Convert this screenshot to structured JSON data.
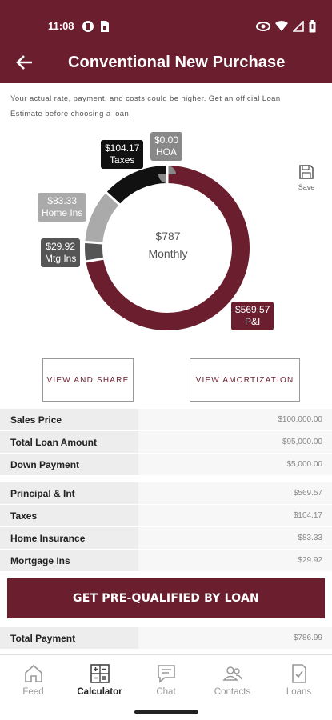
{
  "status_bar": {
    "time": "11:08"
  },
  "header": {
    "title": "Conventional New Purchase"
  },
  "disclaimer": "Your actual rate, payment, and costs could be higher. Get an official Loan Estimate before choosing a loan.",
  "chart_data": {
    "type": "pie",
    "donut": true,
    "center_value": "$787",
    "center_label": "Monthly",
    "slices": [
      {
        "name": "P&I",
        "value": 569.57,
        "label_value": "$569.57",
        "color": "#6b1f2e"
      },
      {
        "name": "Mtg Ins",
        "value": 29.92,
        "label_value": "$29.92",
        "color": "#555555"
      },
      {
        "name": "Home Ins",
        "value": 83.33,
        "label_value": "$83.33",
        "color": "#aaaaaa"
      },
      {
        "name": "Taxes",
        "value": 104.17,
        "label_value": "$104.17",
        "color": "#111111"
      },
      {
        "name": "HOA",
        "value": 0.0,
        "label_value": "$0.00",
        "color": "#888888"
      }
    ]
  },
  "actions": {
    "save_label": "Save",
    "view_share": "VIEW AND SHARE",
    "view_amortization": "VIEW AMORTIZATION"
  },
  "loan_summary": [
    {
      "label": "Sales Price",
      "value": "$100,000.00"
    },
    {
      "label": "Total Loan Amount",
      "value": "$95,000.00"
    },
    {
      "label": "Down Payment",
      "value": "$5,000.00"
    }
  ],
  "payment_breakdown": [
    {
      "label": "Principal & Int",
      "value": "$569.57"
    },
    {
      "label": "Taxes",
      "value": "$104.17"
    },
    {
      "label": "Home Insurance",
      "value": "$83.33"
    },
    {
      "label": "Mortgage Ins",
      "value": "$29.92"
    }
  ],
  "cta_label": "GET PRE-QUALIFIED BY LOAN",
  "total": {
    "label": "Total Payment",
    "value": "$786.99"
  },
  "nav": [
    {
      "label": "Feed",
      "icon": "home-icon",
      "active": false
    },
    {
      "label": "Calculator",
      "icon": "calculator-icon",
      "active": true
    },
    {
      "label": "Chat",
      "icon": "chat-icon",
      "active": false
    },
    {
      "label": "Contacts",
      "icon": "contacts-icon",
      "active": false
    },
    {
      "label": "Loans",
      "icon": "loans-icon",
      "active": false
    }
  ],
  "colors": {
    "brand": "#6b1f2e",
    "row_key_bg": "#ededed",
    "row_value_bg": "#f7f7f7"
  }
}
